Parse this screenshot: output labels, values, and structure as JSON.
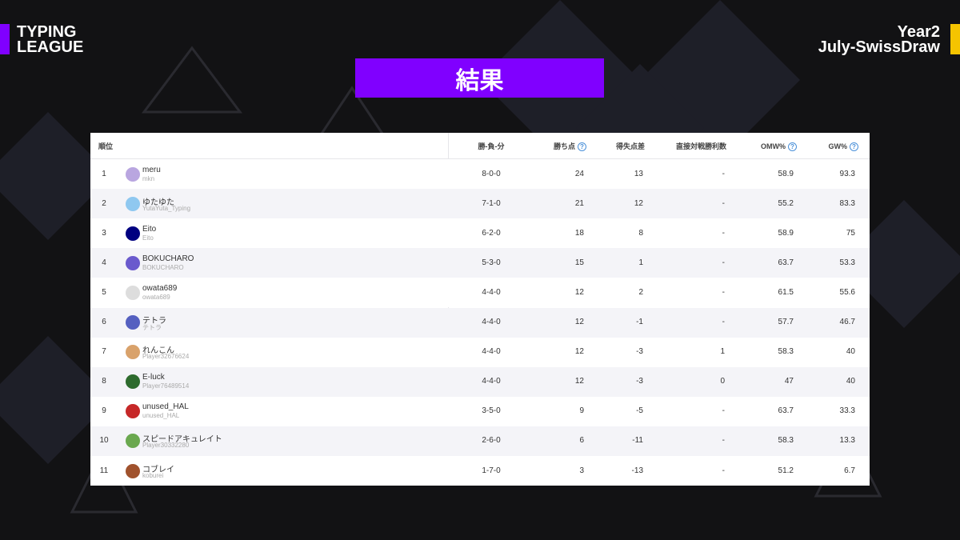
{
  "header": {
    "logo": [
      "TYPING",
      "LEAGUE"
    ],
    "season": "Year2",
    "event": "July-SwissDraw",
    "title": "結果"
  },
  "table": {
    "columns": [
      "順位",
      "勝-負-分",
      "勝ち点",
      "得失点差",
      "直接対戦勝利数",
      "OMW%",
      "GW%"
    ],
    "rows": [
      [
        "1",
        "meru",
        "mkn",
        "8-0-0",
        "24",
        "13",
        "-",
        "58.9",
        "93.3"
      ],
      [
        "2",
        "ゆたゆた",
        "YutaYuta_Typing",
        "7-1-0",
        "21",
        "12",
        "-",
        "55.2",
        "83.3"
      ],
      [
        "3",
        "Eito",
        "Eito",
        "6-2-0",
        "18",
        "8",
        "-",
        "58.9",
        "75"
      ],
      [
        "4",
        "BOKUCHARO",
        "BOKUCHARO",
        "5-3-0",
        "15",
        "1",
        "-",
        "63.7",
        "53.3"
      ],
      [
        "5",
        "owata689",
        "owata689",
        "4-4-0",
        "12",
        "2",
        "-",
        "61.5",
        "55.6"
      ],
      [
        "6",
        "テトラ",
        "テトラ",
        "4-4-0",
        "12",
        "-1",
        "-",
        "57.7",
        "46.7"
      ],
      [
        "7",
        "れんこん",
        "Player32676624",
        "4-4-0",
        "12",
        "-3",
        "1",
        "58.3",
        "40"
      ],
      [
        "8",
        "E-luck",
        "Player76489514",
        "4-4-0",
        "12",
        "-3",
        "0",
        "47",
        "40"
      ],
      [
        "9",
        "unused_HAL",
        "unused_HAL",
        "3-5-0",
        "9",
        "-5",
        "-",
        "63.7",
        "33.3"
      ],
      [
        "10",
        "スピードアキュレイト",
        "Player30332280",
        "2-6-0",
        "6",
        "-11",
        "-",
        "58.3",
        "13.3"
      ],
      [
        "11",
        "コブレイ",
        "koburei",
        "1-7-0",
        "3",
        "-13",
        "-",
        "51.2",
        "6.7"
      ]
    ]
  }
}
